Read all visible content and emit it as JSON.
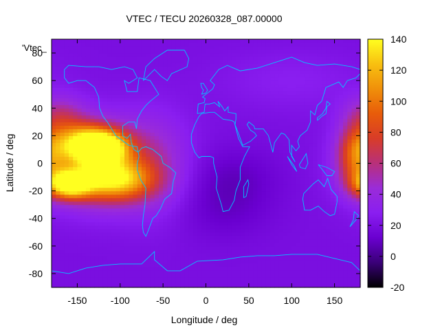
{
  "chart_data": {
    "type": "heatmap",
    "title": "VTEC / TECU 20260328_087.00000",
    "xlabel": "Longitude / deg",
    "ylabel": "Latitude / deg",
    "key_label": "'Vtec_",
    "xlim": [
      -180,
      180
    ],
    "ylim": [
      -90,
      90
    ],
    "x_ticks": [
      -150,
      -100,
      -50,
      0,
      50,
      100,
      150
    ],
    "y_ticks": [
      -80,
      -60,
      -40,
      -20,
      0,
      20,
      40,
      60,
      80
    ],
    "colorbar": {
      "range": [
        -20,
        140
      ],
      "ticks": [
        -20,
        0,
        20,
        40,
        60,
        80,
        100,
        120,
        140
      ],
      "palette": [
        "#000000",
        "#3a0078",
        "#6a00d0",
        "#8a1ef0",
        "#9a2cd8",
        "#b8307a",
        "#d83c28",
        "#e85c0a",
        "#f0900a",
        "#f8c010",
        "#ffff20"
      ]
    },
    "background_level": 20,
    "coastline_color": "#00c8ff",
    "features": [
      {
        "lon": -160,
        "lat": -15,
        "amplitude": 110,
        "lon_width": 18,
        "lat_width": 7
      },
      {
        "lon": -120,
        "lat": 12,
        "amplitude": 100,
        "lon_width": 20,
        "lat_width": 8
      },
      {
        "lon": -145,
        "lat": 15,
        "amplitude": 70,
        "lon_width": 25,
        "lat_width": 10
      },
      {
        "lon": -105,
        "lat": -12,
        "amplitude": 80,
        "lon_width": 30,
        "lat_width": 10
      },
      {
        "lon": -130,
        "lat": 0,
        "amplitude": 60,
        "lon_width": 40,
        "lat_width": 20
      },
      {
        "lon": -60,
        "lat": 0,
        "amplitude": 25,
        "lon_width": 30,
        "lat_width": 25
      },
      {
        "lon": 175,
        "lat": 5,
        "amplitude": 55,
        "lon_width": 15,
        "lat_width": 15
      },
      {
        "lon": -170,
        "lat": 35,
        "amplitude": 30,
        "lon_width": 20,
        "lat_width": 10
      },
      {
        "lon": 30,
        "lat": -10,
        "amplitude": -10,
        "lon_width": 40,
        "lat_width": 15
      },
      {
        "lon": 20,
        "lat": -35,
        "amplitude": -8,
        "lon_width": 40,
        "lat_width": 15
      },
      {
        "lon": 100,
        "lat": 60,
        "amplitude": 8,
        "lon_width": 60,
        "lat_width": 15
      }
    ],
    "coastlines": [
      [
        [
          -165,
          68
        ],
        [
          -160,
          71
        ],
        [
          -140,
          70
        ],
        [
          -125,
          70
        ],
        [
          -110,
          68
        ],
        [
          -95,
          70
        ],
        [
          -85,
          68
        ],
        [
          -80,
          62
        ],
        [
          -90,
          58
        ],
        [
          -95,
          60
        ],
        [
          -92,
          52
        ],
        [
          -80,
          52
        ],
        [
          -78,
          62
        ],
        [
          -65,
          60
        ],
        [
          -60,
          55
        ],
        [
          -55,
          50
        ],
        [
          -65,
          45
        ],
        [
          -70,
          42
        ],
        [
          -75,
          38
        ],
        [
          -80,
          32
        ],
        [
          -81,
          25
        ],
        [
          -83,
          30
        ],
        [
          -90,
          30
        ],
        [
          -97,
          27
        ],
        [
          -97,
          20
        ],
        [
          -92,
          18
        ],
        [
          -88,
          21
        ],
        [
          -87,
          15
        ],
        [
          -84,
          10
        ],
        [
          -79,
          8
        ],
        [
          -80,
          12
        ],
        [
          -90,
          13
        ],
        [
          -105,
          20
        ],
        [
          -110,
          25
        ],
        [
          -115,
          30
        ],
        [
          -120,
          34
        ],
        [
          -124,
          40
        ],
        [
          -125,
          48
        ],
        [
          -130,
          55
        ],
        [
          -140,
          60
        ],
        [
          -150,
          60
        ],
        [
          -160,
          58
        ],
        [
          -165,
          62
        ],
        [
          -165,
          68
        ]
      ],
      [
        [
          -79,
          8
        ],
        [
          -75,
          11
        ],
        [
          -70,
          12
        ],
        [
          -62,
          10
        ],
        [
          -52,
          5
        ],
        [
          -50,
          0
        ],
        [
          -42,
          -3
        ],
        [
          -35,
          -7
        ],
        [
          -38,
          -13
        ],
        [
          -40,
          -22
        ],
        [
          -48,
          -26
        ],
        [
          -53,
          -33
        ],
        [
          -58,
          -38
        ],
        [
          -62,
          -40
        ],
        [
          -65,
          -45
        ],
        [
          -68,
          -50
        ],
        [
          -70,
          -53
        ],
        [
          -73,
          -50
        ],
        [
          -74,
          -45
        ],
        [
          -73,
          -38
        ],
        [
          -71,
          -30
        ],
        [
          -70,
          -18
        ],
        [
          -76,
          -12
        ],
        [
          -80,
          -5
        ],
        [
          -80,
          0
        ],
        [
          -78,
          5
        ],
        [
          -79,
          8
        ]
      ],
      [
        [
          -17,
          15
        ],
        [
          -17,
          21
        ],
        [
          -13,
          28
        ],
        [
          -8,
          34
        ],
        [
          -5,
          36
        ],
        [
          5,
          37
        ],
        [
          10,
          37
        ],
        [
          20,
          32
        ],
        [
          30,
          31
        ],
        [
          33,
          30
        ],
        [
          35,
          25
        ],
        [
          38,
          18
        ],
        [
          43,
          12
        ],
        [
          51,
          12
        ],
        [
          45,
          5
        ],
        [
          40,
          -3
        ],
        [
          40,
          -12
        ],
        [
          35,
          -20
        ],
        [
          33,
          -27
        ],
        [
          27,
          -34
        ],
        [
          20,
          -35
        ],
        [
          18,
          -30
        ],
        [
          12,
          -18
        ],
        [
          13,
          -10
        ],
        [
          9,
          0
        ],
        [
          9,
          4
        ],
        [
          5,
          5
        ],
        [
          -5,
          5
        ],
        [
          -8,
          4
        ],
        [
          -13,
          8
        ],
        [
          -17,
          15
        ]
      ],
      [
        [
          -10,
          36
        ],
        [
          -9,
          43
        ],
        [
          -2,
          44
        ],
        [
          -1,
          47
        ],
        [
          -4,
          48
        ],
        [
          2,
          51
        ],
        [
          8,
          54
        ],
        [
          10,
          57
        ],
        [
          5,
          60
        ],
        [
          10,
          64
        ],
        [
          15,
          68
        ],
        [
          25,
          71
        ],
        [
          40,
          67
        ],
        [
          60,
          69
        ],
        [
          80,
          73
        ],
        [
          100,
          77
        ],
        [
          115,
          73
        ],
        [
          130,
          71
        ],
        [
          150,
          72
        ],
        [
          170,
          70
        ],
        [
          180,
          68
        ],
        [
          180,
          65
        ],
        [
          175,
          62
        ],
        [
          165,
          60
        ],
        [
          160,
          55
        ],
        [
          155,
          59
        ],
        [
          140,
          55
        ],
        [
          135,
          45
        ],
        [
          130,
          42
        ],
        [
          127,
          35
        ],
        [
          122,
          38
        ],
        [
          122,
          30
        ],
        [
          118,
          24
        ],
        [
          110,
          20
        ],
        [
          107,
          16
        ],
        [
          109,
          12
        ],
        [
          105,
          9
        ],
        [
          100,
          13
        ],
        [
          100,
          5
        ],
        [
          104,
          1
        ],
        [
          98,
          8
        ],
        [
          97,
          17
        ],
        [
          92,
          21
        ],
        [
          88,
          22
        ],
        [
          80,
          15
        ],
        [
          78,
          8
        ],
        [
          73,
          20
        ],
        [
          67,
          25
        ],
        [
          57,
          25
        ],
        [
          56,
          27
        ],
        [
          50,
          30
        ],
        [
          48,
          28
        ],
        [
          52,
          24
        ],
        [
          57,
          22
        ],
        [
          59,
          20
        ],
        [
          52,
          16
        ],
        [
          43,
          13
        ],
        [
          39,
          20
        ],
        [
          34,
          28
        ],
        [
          35,
          32
        ],
        [
          35,
          36
        ],
        [
          26,
          37
        ],
        [
          26,
          41
        ],
        [
          22,
          38
        ],
        [
          19,
          41
        ],
        [
          14,
          45
        ],
        [
          16,
          41
        ],
        [
          10,
          44
        ],
        [
          4,
          43
        ],
        [
          -1,
          43
        ],
        [
          -2,
          37
        ],
        [
          -10,
          36
        ]
      ],
      [
        [
          114,
          -22
        ],
        [
          113,
          -26
        ],
        [
          115,
          -34
        ],
        [
          122,
          -34
        ],
        [
          131,
          -31
        ],
        [
          138,
          -35
        ],
        [
          145,
          -38
        ],
        [
          150,
          -37
        ],
        [
          153,
          -28
        ],
        [
          153,
          -24
        ],
        [
          146,
          -19
        ],
        [
          142,
          -11
        ],
        [
          138,
          -17
        ],
        [
          131,
          -12
        ],
        [
          125,
          -15
        ],
        [
          114,
          -22
        ]
      ],
      [
        [
          -180,
          -78
        ],
        [
          -160,
          -80
        ],
        [
          -140,
          -76
        ],
        [
          -120,
          -74
        ],
        [
          -100,
          -73
        ],
        [
          -75,
          -73
        ],
        [
          -60,
          -64
        ],
        [
          -60,
          -70
        ],
        [
          -45,
          -78
        ],
        [
          -30,
          -78
        ],
        [
          -10,
          -71
        ],
        [
          20,
          -70
        ],
        [
          40,
          -68
        ],
        [
          60,
          -67
        ],
        [
          80,
          -67
        ],
        [
          100,
          -66
        ],
        [
          130,
          -66
        ],
        [
          150,
          -69
        ],
        [
          170,
          -72
        ],
        [
          180,
          -78
        ]
      ],
      [
        [
          -73,
          60
        ],
        [
          -70,
          70
        ],
        [
          -60,
          76
        ],
        [
          -45,
          82
        ],
        [
          -25,
          82
        ],
        [
          -20,
          76
        ],
        [
          -22,
          70
        ],
        [
          -40,
          65
        ],
        [
          -45,
          60
        ],
        [
          -52,
          63
        ],
        [
          -60,
          68
        ],
        [
          -73,
          60
        ]
      ],
      [
        [
          -5,
          50
        ],
        [
          0,
          51
        ],
        [
          2,
          53
        ],
        [
          -1,
          56
        ],
        [
          -3,
          58
        ],
        [
          -6,
          58
        ],
        [
          -5,
          55
        ],
        [
          -3,
          53
        ],
        [
          -5,
          50
        ]
      ],
      [
        [
          130,
          31
        ],
        [
          135,
          34
        ],
        [
          140,
          36
        ],
        [
          141,
          41
        ],
        [
          145,
          43
        ],
        [
          141,
          45
        ],
        [
          140,
          40
        ],
        [
          136,
          36
        ],
        [
          130,
          33
        ],
        [
          130,
          31
        ]
      ],
      [
        [
          44,
          -25
        ],
        [
          47,
          -24
        ],
        [
          50,
          -15
        ],
        [
          49,
          -12
        ],
        [
          44,
          -17
        ],
        [
          44,
          -25
        ]
      ],
      [
        [
          173,
          -35
        ],
        [
          178,
          -38
        ],
        [
          175,
          -41
        ],
        [
          168,
          -46
        ],
        [
          172,
          -41
        ],
        [
          173,
          -35
        ]
      ],
      [
        [
          95,
          5
        ],
        [
          103,
          -2
        ],
        [
          106,
          -6
        ],
        [
          100,
          -1
        ],
        [
          95,
          5
        ]
      ],
      [
        [
          109,
          -1
        ],
        [
          112,
          2
        ],
        [
          117,
          7
        ],
        [
          119,
          0
        ],
        [
          116,
          -4
        ],
        [
          110,
          -3
        ],
        [
          109,
          -1
        ]
      ],
      [
        [
          131,
          -1
        ],
        [
          141,
          -3
        ],
        [
          150,
          -6
        ],
        [
          147,
          -9
        ],
        [
          141,
          -9
        ],
        [
          135,
          -4
        ],
        [
          131,
          -1
        ]
      ]
    ]
  }
}
